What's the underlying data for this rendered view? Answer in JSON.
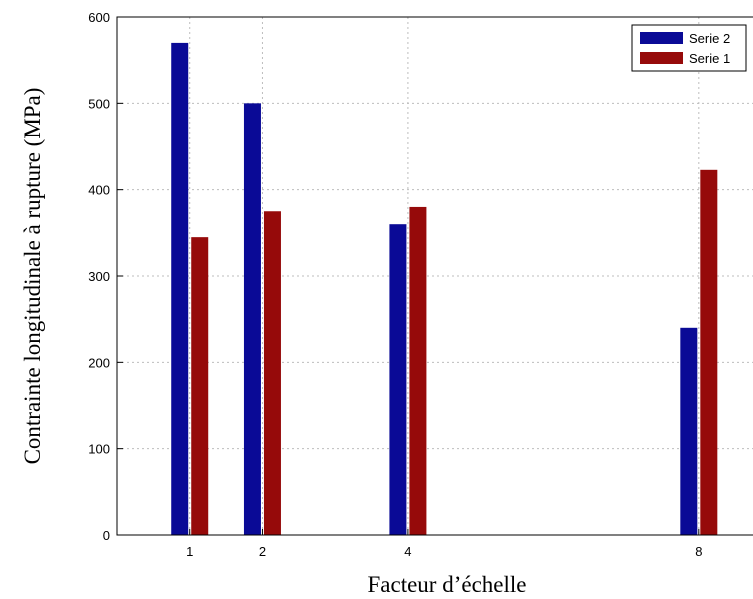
{
  "chart_data": {
    "type": "bar",
    "title": "",
    "xlabel": "Facteur d’échelle",
    "ylabel": "Contrainte longitudinale à  rupture (MPa)",
    "x": [
      1,
      2,
      4,
      8
    ],
    "xticks": [
      "1",
      "2",
      "4",
      "8"
    ],
    "xlim": [
      0,
      8.8
    ],
    "ylim": [
      0,
      600
    ],
    "yticks": [
      "0",
      "100",
      "200",
      "300",
      "400",
      "500",
      "600"
    ],
    "grid": true,
    "legend_position": "top-right",
    "series": [
      {
        "name": "Serie 2",
        "color": "#0a0a96",
        "values": [
          570,
          500,
          360,
          240
        ]
      },
      {
        "name": "Serie 1",
        "color": "#960a0a",
        "values": [
          345,
          375,
          380,
          423
        ]
      }
    ]
  }
}
